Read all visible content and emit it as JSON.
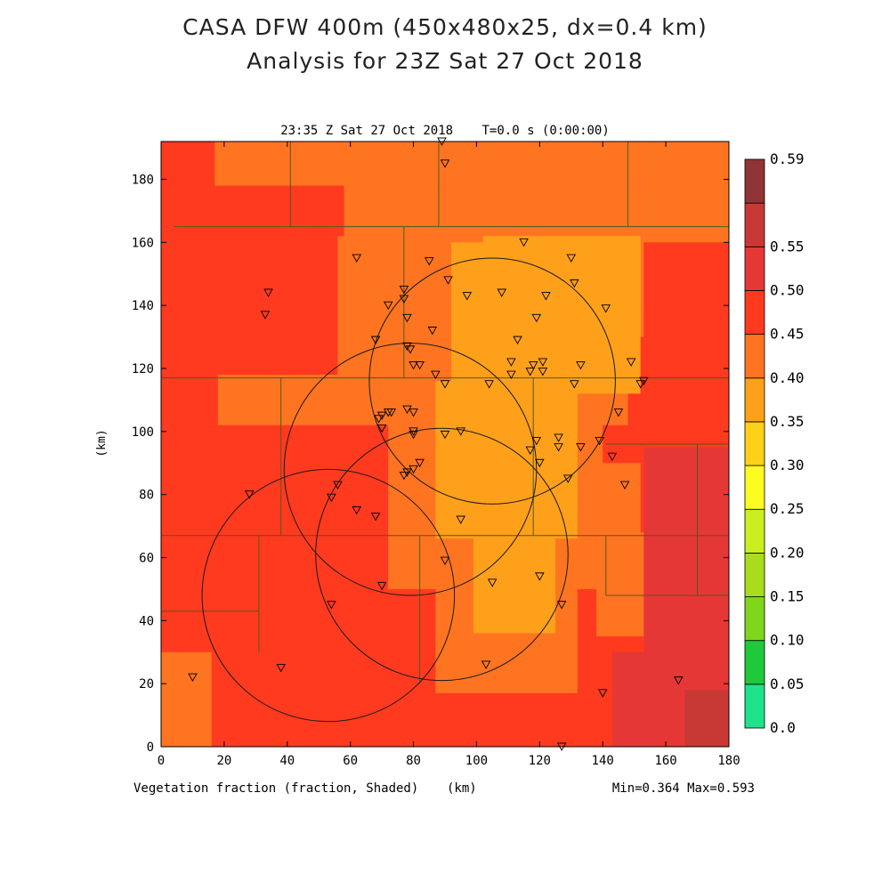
{
  "title_line1": "CASA DFW 400m (450x480x25, dx=0.4 km)",
  "title_line2": "Analysis for 23Z Sat 27 Oct 2018",
  "plot_time": "23:35 Z Sat 27 Oct 2018",
  "plot_t": "T=0.0 s (0:00:00)",
  "xlabel": "(km)",
  "ylabel": "(km)",
  "field_label": "Vegetation fraction (fraction, Shaded)",
  "minmax": "Min=0.364 Max=0.593",
  "chart_data": {
    "type": "heatmap",
    "field": "Vegetation fraction",
    "units": "fraction",
    "min": 0.364,
    "max": 0.593,
    "xlim": [
      0,
      180
    ],
    "ylim": [
      0,
      192
    ],
    "xticks": [
      0,
      20,
      40,
      60,
      80,
      100,
      120,
      140,
      160,
      180
    ],
    "yticks": [
      0,
      20,
      40,
      60,
      80,
      100,
      120,
      140,
      160,
      180
    ],
    "colorbar": {
      "levels": [
        "0.0",
        "0.05",
        "0.10",
        "0.15",
        "0.20",
        "0.25",
        "0.30",
        "0.35",
        "0.40",
        "0.45",
        "0.50",
        "0.55",
        "0.59"
      ],
      "colors": [
        "#1fe38a",
        "#1ec93c",
        "#7fd61a",
        "#a9dc1a",
        "#cbee20",
        "#fcfc21",
        "#ffd018",
        "#ffa01b",
        "#ff7420",
        "#ff3a1f",
        "#e63737",
        "#c83935",
        "#8f3535"
      ]
    },
    "regions": [
      {
        "x0": 0,
        "y0": 0,
        "x1": 180,
        "y1": 192,
        "v": 0.47
      },
      {
        "x0": 0,
        "y0": 0,
        "x1": 16,
        "y1": 30,
        "v": 0.43
      },
      {
        "x0": 17,
        "y0": 178,
        "x1": 180,
        "y1": 192,
        "v": 0.43
      },
      {
        "x0": 58,
        "y0": 160,
        "x1": 180,
        "y1": 178,
        "v": 0.43
      },
      {
        "x0": 56,
        "y0": 116,
        "x1": 153,
        "y1": 162,
        "v": 0.43
      },
      {
        "x0": 18,
        "y0": 102,
        "x1": 148,
        "y1": 118,
        "v": 0.43
      },
      {
        "x0": 72,
        "y0": 50,
        "x1": 140,
        "y1": 104,
        "v": 0.43
      },
      {
        "x0": 87,
        "y0": 17,
        "x1": 132,
        "y1": 52,
        "v": 0.43
      },
      {
        "x0": 138,
        "y0": 35,
        "x1": 155,
        "y1": 90,
        "v": 0.43
      },
      {
        "x0": 92,
        "y0": 112,
        "x1": 152,
        "y1": 160,
        "v": 0.39
      },
      {
        "x0": 102,
        "y0": 140,
        "x1": 152,
        "y1": 162,
        "v": 0.39
      },
      {
        "x0": 87,
        "y0": 66,
        "x1": 132,
        "y1": 116,
        "v": 0.39
      },
      {
        "x0": 99,
        "y0": 36,
        "x1": 125,
        "y1": 70,
        "v": 0.37
      },
      {
        "x0": 152,
        "y0": 68,
        "x1": 180,
        "y1": 130,
        "v": 0.47
      },
      {
        "x0": 153,
        "y0": 0,
        "x1": 180,
        "y1": 95,
        "v": 0.51
      },
      {
        "x0": 143,
        "y0": 0,
        "x1": 180,
        "y1": 30,
        "v": 0.53
      },
      {
        "x0": 166,
        "y0": 0,
        "x1": 180,
        "y1": 18,
        "v": 0.58
      }
    ],
    "radar_rings": [
      {
        "cx": 105,
        "cy": 116,
        "r": 39
      },
      {
        "cx": 79,
        "cy": 88,
        "r": 40
      },
      {
        "cx": 89,
        "cy": 61,
        "r": 40
      },
      {
        "cx": 53,
        "cy": 48,
        "r": 40
      }
    ],
    "stations": [
      [
        89,
        192
      ],
      [
        90,
        185
      ],
      [
        62,
        155
      ],
      [
        130,
        155
      ],
      [
        85,
        154
      ],
      [
        115,
        160
      ],
      [
        34,
        144
      ],
      [
        33,
        137
      ],
      [
        91,
        148
      ],
      [
        77,
        145
      ],
      [
        131,
        147
      ],
      [
        108,
        144
      ],
      [
        97,
        143
      ],
      [
        122,
        143
      ],
      [
        72,
        140
      ],
      [
        77,
        142
      ],
      [
        141,
        139
      ],
      [
        78,
        136
      ],
      [
        119,
        136
      ],
      [
        86,
        132
      ],
      [
        68,
        129
      ],
      [
        113,
        129
      ],
      [
        78,
        127
      ],
      [
        79,
        126
      ],
      [
        111,
        122
      ],
      [
        80,
        121
      ],
      [
        118,
        121
      ],
      [
        121,
        122
      ],
      [
        82,
        121
      ],
      [
        133,
        121
      ],
      [
        149,
        122
      ],
      [
        111,
        118
      ],
      [
        87,
        118
      ],
      [
        117,
        119
      ],
      [
        121,
        119
      ],
      [
        153,
        116
      ],
      [
        152,
        115
      ],
      [
        131,
        115
      ],
      [
        90,
        115
      ],
      [
        104,
        115
      ],
      [
        78,
        107
      ],
      [
        72,
        106
      ],
      [
        69,
        104
      ],
      [
        70,
        105
      ],
      [
        73,
        106
      ],
      [
        80,
        106
      ],
      [
        145,
        106
      ],
      [
        70,
        101
      ],
      [
        80,
        100
      ],
      [
        95,
        100
      ],
      [
        80,
        99
      ],
      [
        90,
        99
      ],
      [
        119,
        97
      ],
      [
        126,
        98
      ],
      [
        139,
        97
      ],
      [
        126,
        95
      ],
      [
        133,
        95
      ],
      [
        143,
        92
      ],
      [
        117,
        94
      ],
      [
        120,
        90
      ],
      [
        82,
        90
      ],
      [
        80,
        88
      ],
      [
        78,
        87
      ],
      [
        77,
        86
      ],
      [
        129,
        85
      ],
      [
        147,
        83
      ],
      [
        28,
        80
      ],
      [
        56,
        83
      ],
      [
        54,
        79
      ],
      [
        62,
        75
      ],
      [
        68,
        73
      ],
      [
        95,
        72
      ],
      [
        90,
        59
      ],
      [
        120,
        54
      ],
      [
        105,
        52
      ],
      [
        70,
        51
      ],
      [
        54,
        45
      ],
      [
        127,
        45
      ],
      [
        38,
        25
      ],
      [
        103,
        26
      ],
      [
        10,
        22
      ],
      [
        140,
        17
      ],
      [
        164,
        21
      ],
      [
        127,
        0
      ]
    ],
    "boundaries": [
      [
        [
          0,
          117
        ],
        [
          180,
          117
        ]
      ],
      [
        [
          0,
          67
        ],
        [
          180,
          67
        ]
      ],
      [
        [
          4,
          165
        ],
        [
          180,
          165
        ]
      ],
      [
        [
          38,
          117
        ],
        [
          38,
          67
        ]
      ],
      [
        [
          77,
          165
        ],
        [
          77,
          117
        ]
      ],
      [
        [
          41,
          192
        ],
        [
          41,
          165
        ]
      ],
      [
        [
          88,
          192
        ],
        [
          88,
          165
        ]
      ],
      [
        [
          148,
          192
        ],
        [
          148,
          165
        ]
      ],
      [
        [
          118,
          117
        ],
        [
          118,
          67
        ]
      ],
      [
        [
          82,
          67
        ],
        [
          82,
          20
        ]
      ],
      [
        [
          31,
          67
        ],
        [
          31,
          30
        ]
      ],
      [
        [
          0,
          43
        ],
        [
          31,
          43
        ]
      ],
      [
        [
          141,
          67
        ],
        [
          141,
          48
        ]
      ],
      [
        [
          170,
          96
        ],
        [
          170,
          48
        ]
      ],
      [
        [
          141,
          96
        ],
        [
          180,
          96
        ]
      ],
      [
        [
          141,
          48
        ],
        [
          180,
          48
        ]
      ]
    ]
  }
}
